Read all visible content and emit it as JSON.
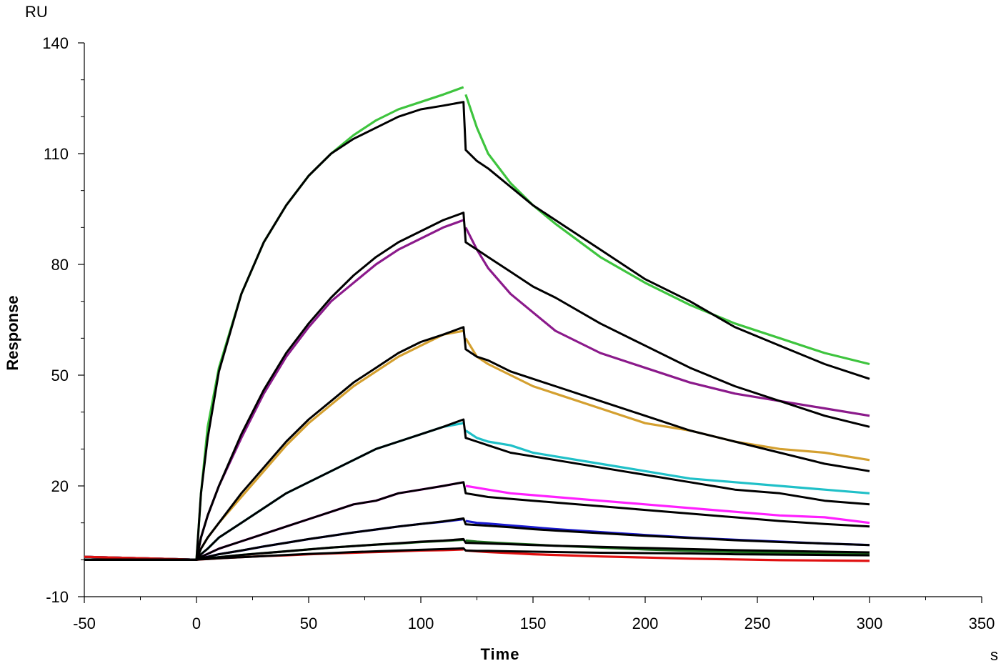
{
  "chart_data": {
    "type": "line",
    "title": "",
    "xlabel": "Time",
    "ylabel": "Response",
    "x_unit": "s",
    "y_unit": "RU",
    "xlim": [
      -50,
      350
    ],
    "ylim": [
      -10,
      140
    ],
    "x_ticks": [
      -50,
      0,
      50,
      100,
      150,
      200,
      250,
      300,
      350
    ],
    "y_ticks": [
      -10,
      20,
      50,
      80,
      110,
      140
    ],
    "x_tick_labels": [
      "-50",
      "0",
      "50",
      "100",
      "150",
      "200",
      "250",
      "300",
      "350"
    ],
    "y_tick_labels": [
      "-10",
      "20",
      "50",
      "80",
      "110",
      "140"
    ],
    "grid": false,
    "legend": "none",
    "association_end": 119,
    "series": [
      {
        "color": "#3ec43e",
        "fit_color": "#000000",
        "baseline": 0.8,
        "observed": {
          "t": [
            0,
            2,
            5,
            10,
            20,
            30,
            40,
            50,
            60,
            70,
            80,
            90,
            100,
            110,
            119,
            120,
            125,
            130,
            140,
            150,
            160,
            180,
            200,
            220,
            240,
            260,
            280,
            300
          ],
          "y": [
            0,
            18,
            36,
            52,
            72,
            86,
            96,
            104,
            110,
            115,
            119,
            122,
            124,
            126,
            128,
            126,
            117,
            110,
            102,
            96,
            91,
            82,
            75,
            69,
            64,
            60,
            56,
            53
          ]
        },
        "fit": {
          "t": [
            0,
            2,
            5,
            10,
            20,
            30,
            40,
            50,
            60,
            70,
            80,
            90,
            100,
            110,
            119,
            120,
            125,
            130,
            140,
            150,
            160,
            180,
            200,
            220,
            240,
            260,
            280,
            300
          ],
          "y": [
            0,
            18,
            33,
            51,
            72,
            86,
            96,
            104,
            110,
            114,
            117,
            120,
            122,
            123,
            124,
            111,
            108,
            106,
            101,
            96,
            92,
            84,
            76,
            70,
            63,
            58,
            53,
            49
          ]
        }
      },
      {
        "color": "#8b1a8b",
        "fit_color": "#000000",
        "observed": {
          "t": [
            0,
            2,
            5,
            10,
            20,
            30,
            40,
            50,
            60,
            70,
            80,
            90,
            100,
            110,
            119,
            120,
            125,
            130,
            140,
            150,
            160,
            180,
            200,
            220,
            240,
            260,
            280,
            300
          ],
          "y": [
            0,
            6,
            12,
            20,
            33,
            45,
            55,
            63,
            70,
            75,
            80,
            84,
            87,
            90,
            92,
            90,
            84,
            79,
            72,
            67,
            62,
            56,
            52,
            48,
            45,
            43,
            41,
            39
          ]
        },
        "fit": {
          "t": [
            0,
            2,
            5,
            10,
            20,
            30,
            40,
            50,
            60,
            70,
            80,
            90,
            100,
            110,
            119,
            120,
            125,
            130,
            140,
            150,
            160,
            180,
            200,
            220,
            240,
            260,
            280,
            300
          ],
          "y": [
            0,
            6,
            12,
            20,
            34,
            46,
            56,
            64,
            71,
            77,
            82,
            86,
            89,
            92,
            94,
            86,
            84,
            82,
            78,
            74,
            71,
            64,
            58,
            52,
            47,
            43,
            39,
            36
          ]
        }
      },
      {
        "color": "#d4a030",
        "fit_color": "#000000",
        "observed": {
          "t": [
            0,
            2,
            5,
            10,
            20,
            30,
            40,
            50,
            60,
            70,
            80,
            90,
            100,
            110,
            119,
            120,
            125,
            130,
            140,
            150,
            160,
            180,
            200,
            220,
            240,
            260,
            280,
            300
          ],
          "y": [
            0,
            3,
            6,
            10,
            17,
            24,
            31,
            37,
            42,
            47,
            51,
            55,
            58,
            61,
            62,
            60,
            55,
            53,
            50,
            47,
            45,
            41,
            37,
            35,
            32,
            30,
            29,
            27
          ]
        },
        "fit": {
          "t": [
            0,
            2,
            5,
            10,
            20,
            30,
            40,
            50,
            60,
            70,
            80,
            90,
            100,
            110,
            119,
            120,
            125,
            130,
            140,
            150,
            160,
            180,
            200,
            220,
            240,
            260,
            280,
            300
          ],
          "y": [
            0,
            3,
            6,
            10,
            18,
            25,
            32,
            38,
            43,
            48,
            52,
            56,
            59,
            61,
            63,
            57,
            55,
            54,
            51,
            49,
            47,
            43,
            39,
            35,
            32,
            29,
            26,
            24
          ]
        }
      },
      {
        "color": "#20c0c8",
        "fit_color": "#000000",
        "observed": {
          "t": [
            0,
            2,
            5,
            10,
            20,
            30,
            40,
            50,
            60,
            70,
            80,
            90,
            100,
            110,
            119,
            120,
            125,
            130,
            140,
            150,
            160,
            180,
            200,
            220,
            240,
            260,
            280,
            300
          ],
          "y": [
            0,
            1.5,
            3,
            6,
            10,
            14,
            18,
            21,
            24,
            27,
            30,
            32,
            34,
            36,
            37,
            35,
            33,
            32,
            31,
            29,
            28,
            26,
            24,
            22,
            21,
            20,
            19,
            18
          ]
        },
        "fit": {
          "t": [
            0,
            2,
            5,
            10,
            20,
            30,
            40,
            50,
            60,
            70,
            80,
            90,
            100,
            110,
            119,
            120,
            125,
            130,
            140,
            150,
            160,
            180,
            200,
            220,
            240,
            260,
            280,
            300
          ],
          "y": [
            0,
            1.5,
            3,
            6,
            10,
            14,
            18,
            21,
            24,
            27,
            30,
            32,
            34,
            36,
            38,
            33,
            32,
            31,
            29,
            28,
            27,
            25,
            23,
            21,
            19,
            18,
            16,
            15
          ]
        }
      },
      {
        "color": "#ff20ff",
        "fit_color": "#000000",
        "observed": {
          "t": [
            0,
            2,
            5,
            10,
            20,
            30,
            40,
            50,
            60,
            70,
            80,
            90,
            100,
            110,
            119,
            120,
            125,
            130,
            140,
            150,
            160,
            180,
            200,
            220,
            240,
            260,
            280,
            300
          ],
          "y": [
            0,
            0.8,
            1.6,
            3,
            5,
            7,
            9,
            11,
            13,
            15,
            16,
            18,
            19,
            20,
            21,
            20,
            19.5,
            19,
            18,
            17.5,
            17,
            16,
            15,
            14,
            13,
            12,
            11.5,
            10
          ]
        },
        "fit": {
          "t": [
            0,
            2,
            5,
            10,
            20,
            30,
            40,
            50,
            60,
            70,
            80,
            90,
            100,
            110,
            119,
            120,
            125,
            130,
            140,
            150,
            160,
            180,
            200,
            220,
            240,
            260,
            280,
            300
          ],
          "y": [
            0,
            0.8,
            1.6,
            3,
            5,
            7,
            9,
            11,
            13,
            15,
            16,
            18,
            19,
            20,
            21,
            18,
            17.5,
            17,
            16.5,
            16,
            15.5,
            14.5,
            13.5,
            12.5,
            11.5,
            10.5,
            9.7,
            9
          ]
        }
      },
      {
        "color": "#1a1ad0",
        "fit_color": "#000000",
        "observed": {
          "t": [
            0,
            2,
            5,
            10,
            20,
            30,
            40,
            50,
            60,
            70,
            80,
            90,
            100,
            110,
            119,
            120,
            125,
            130,
            140,
            150,
            160,
            180,
            200,
            220,
            240,
            260,
            280,
            300
          ],
          "y": [
            0,
            0.4,
            0.8,
            1.5,
            2.5,
            3.6,
            4.6,
            5.6,
            6.5,
            7.4,
            8.2,
            9,
            9.7,
            10.3,
            11,
            10.5,
            10,
            9.8,
            9.3,
            8.8,
            8.3,
            7.5,
            6.7,
            6,
            5.4,
            4.9,
            4.4,
            4
          ]
        },
        "fit": {
          "t": [
            0,
            2,
            5,
            10,
            20,
            30,
            40,
            50,
            60,
            70,
            80,
            90,
            100,
            110,
            119,
            120,
            125,
            130,
            140,
            150,
            160,
            180,
            200,
            220,
            240,
            260,
            280,
            300
          ],
          "y": [
            0,
            0.4,
            0.8,
            1.5,
            2.5,
            3.6,
            4.6,
            5.6,
            6.5,
            7.4,
            8.2,
            9,
            9.7,
            10.4,
            11.2,
            9.6,
            9.4,
            9.2,
            8.8,
            8.3,
            7.9,
            7.2,
            6.5,
            5.9,
            5.3,
            4.8,
            4.4,
            4
          ]
        }
      },
      {
        "color": "#1e6e1e",
        "fit_color": "#000000",
        "observed": {
          "t": [
            0,
            2,
            5,
            10,
            20,
            30,
            40,
            50,
            60,
            70,
            80,
            90,
            100,
            110,
            119,
            120,
            125,
            130,
            140,
            150,
            160,
            180,
            200,
            220,
            240,
            260,
            280,
            300
          ],
          "y": [
            0,
            0.2,
            0.4,
            0.7,
            1.3,
            1.8,
            2.3,
            2.8,
            3.3,
            3.7,
            4.1,
            4.4,
            4.8,
            5.1,
            5.4,
            5.2,
            4.9,
            4.7,
            4.4,
            4.1,
            3.8,
            3.3,
            2.8,
            2.4,
            2.1,
            1.9,
            1.7,
            1.5
          ]
        },
        "fit": {
          "t": [
            0,
            2,
            5,
            10,
            20,
            30,
            40,
            50,
            60,
            70,
            80,
            90,
            100,
            110,
            119,
            120,
            125,
            130,
            140,
            150,
            160,
            180,
            200,
            220,
            240,
            260,
            280,
            300
          ],
          "y": [
            0,
            0.2,
            0.4,
            0.7,
            1.3,
            1.8,
            2.3,
            2.8,
            3.3,
            3.7,
            4.1,
            4.5,
            4.9,
            5.2,
            5.6,
            4.6,
            4.5,
            4.4,
            4.2,
            4,
            3.8,
            3.5,
            3.2,
            2.9,
            2.6,
            2.4,
            2.2,
            2
          ]
        }
      },
      {
        "color": "#e01010",
        "fit_color": "#000000",
        "observed": {
          "t": [
            0,
            2,
            5,
            10,
            20,
            30,
            40,
            50,
            60,
            70,
            80,
            90,
            100,
            110,
            119,
            120,
            125,
            130,
            140,
            150,
            160,
            180,
            200,
            220,
            240,
            260,
            280,
            300
          ],
          "y": [
            0,
            0.1,
            0.2,
            0.4,
            0.7,
            1,
            1.2,
            1.5,
            1.7,
            1.9,
            2.1,
            2.3,
            2.5,
            2.6,
            2.8,
            2.5,
            2.3,
            2.1,
            1.8,
            1.5,
            1.3,
            0.9,
            0.6,
            0.3,
            0.1,
            -0.1,
            -0.2,
            -0.3
          ]
        },
        "fit": {
          "t": [
            0,
            2,
            5,
            10,
            20,
            30,
            40,
            50,
            60,
            70,
            80,
            90,
            100,
            110,
            119,
            120,
            125,
            130,
            140,
            150,
            160,
            180,
            200,
            220,
            240,
            260,
            280,
            300
          ],
          "y": [
            0,
            0.1,
            0.2,
            0.4,
            0.7,
            1,
            1.3,
            1.6,
            1.8,
            2.1,
            2.3,
            2.5,
            2.7,
            2.9,
            3.1,
            2.5,
            2.4,
            2.4,
            2.3,
            2.2,
            2.1,
            1.9,
            1.8,
            1.7,
            1.5,
            1.4,
            1.3,
            1.2
          ]
        }
      }
    ]
  }
}
